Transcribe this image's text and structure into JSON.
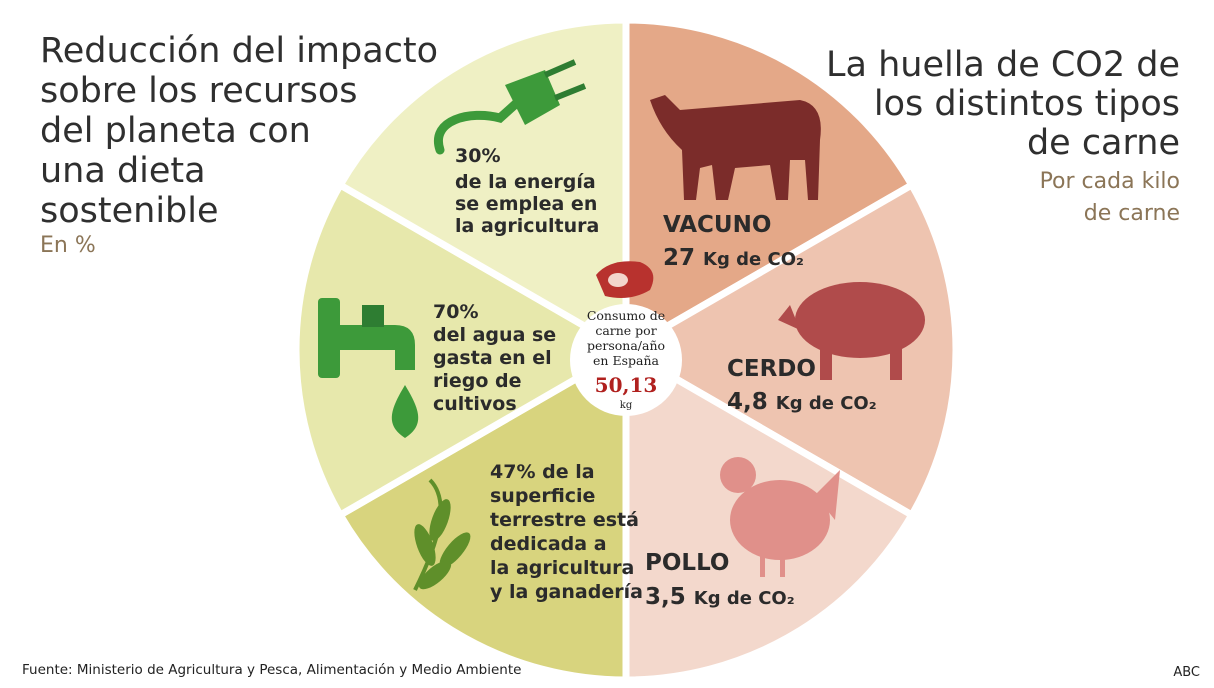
{
  "left_panel": {
    "title_lines": [
      "Reducción del impacto",
      "sobre los recursos",
      "del planeta con",
      "una dieta",
      "sostenible"
    ],
    "subtitle": "En %"
  },
  "right_panel": {
    "title_lines": [
      "La huella de CO2 de",
      "los distintos tipos",
      "de carne"
    ],
    "subtitle_lines": [
      "Por cada kilo",
      "de carne"
    ]
  },
  "resources": [
    {
      "lines": [
        "30%",
        "de la energía",
        "se emplea en",
        "la agricultura"
      ]
    },
    {
      "lines": [
        "70%",
        "del agua se",
        "gasta en el",
        "riego de",
        "cultivos"
      ]
    },
    {
      "lines": [
        "47% de la",
        "superficie",
        "terrestre está",
        "dedicada a",
        "la agricultura",
        "y la ganadería"
      ]
    }
  ],
  "meats": [
    {
      "name": "VACUNO",
      "amount": "27",
      "unit": "Kg de CO₂"
    },
    {
      "name": "CERDO",
      "amount": "4,8",
      "unit": "Kg de CO₂"
    },
    {
      "name": "POLLO",
      "amount": "3,5",
      "unit": "Kg de CO₂"
    }
  ],
  "center": {
    "lines": [
      "Consumo de",
      "carne por",
      "persona/año",
      "en España"
    ],
    "value": "50,13",
    "unit": "kg"
  },
  "footer": {
    "source": "Fuente: Ministerio de Agricultura y Pesca, Alimentación y Medio Ambiente",
    "credit": "ABC"
  }
}
